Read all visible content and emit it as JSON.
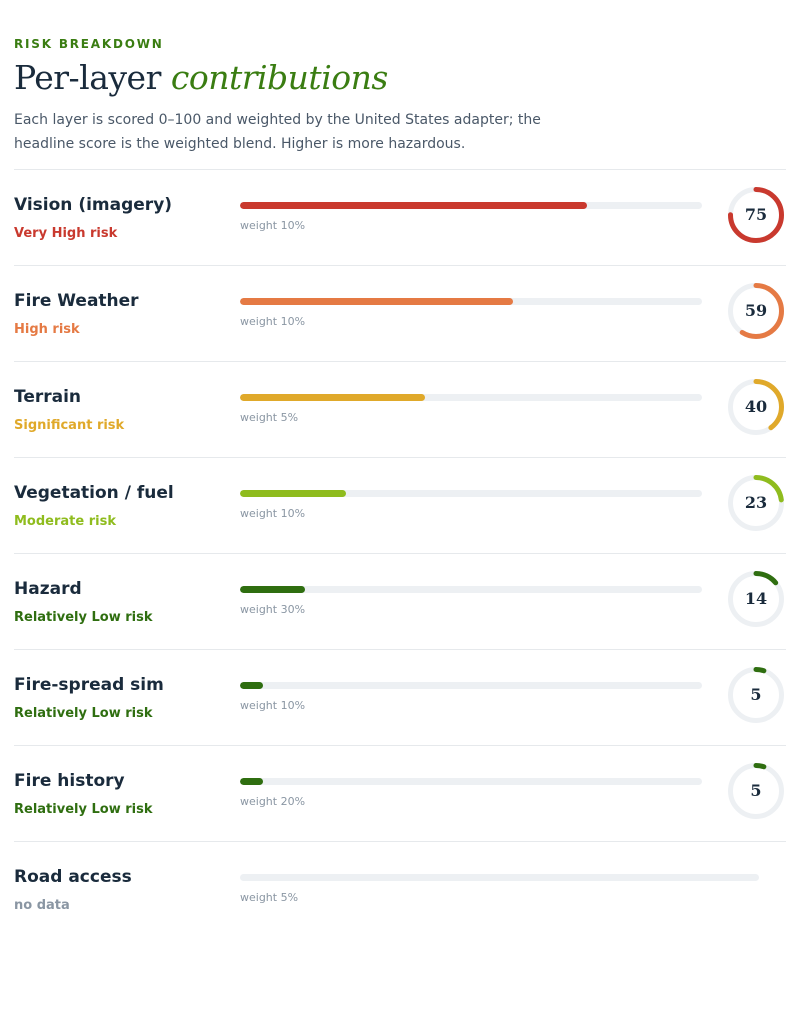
{
  "header": {
    "eyebrow": "RISK BREAKDOWN",
    "title_plain": "Per-layer",
    "title_accent": "contributions",
    "description": "Each layer is scored 0–100 and weighted by the United States adapter; the headline score is the weighted blend. Higher is more hazardous."
  },
  "layers": [
    {
      "name": "Vision (imagery)",
      "risk": "Very High risk",
      "weight": "weight 10%",
      "score": 75,
      "score_text": "75",
      "color": "#c9392e"
    },
    {
      "name": "Fire Weather",
      "risk": "High risk",
      "weight": "weight 10%",
      "score": 59,
      "score_text": "59",
      "color": "#e57a44"
    },
    {
      "name": "Terrain",
      "risk": "Significant risk",
      "weight": "weight 5%",
      "score": 40,
      "score_text": "40",
      "color": "#e0a92a"
    },
    {
      "name": "Vegetation / fuel",
      "risk": "Moderate risk",
      "weight": "weight 10%",
      "score": 23,
      "score_text": "23",
      "color": "#8fbc1e"
    },
    {
      "name": "Hazard",
      "risk": "Relatively Low risk",
      "weight": "weight 30%",
      "score": 14,
      "score_text": "14",
      "color": "#2f6e10"
    },
    {
      "name": "Fire-spread sim",
      "risk": "Relatively Low risk",
      "weight": "weight 10%",
      "score": 5,
      "score_text": "5",
      "color": "#2f6e10"
    },
    {
      "name": "Fire history",
      "risk": "Relatively Low risk",
      "weight": "weight 20%",
      "score": 5,
      "score_text": "5",
      "color": "#2f6e10"
    },
    {
      "name": "Road access",
      "risk": "no data",
      "weight": "weight 5%",
      "score": null,
      "score_text": "",
      "color": "#8a96a3"
    }
  ]
}
